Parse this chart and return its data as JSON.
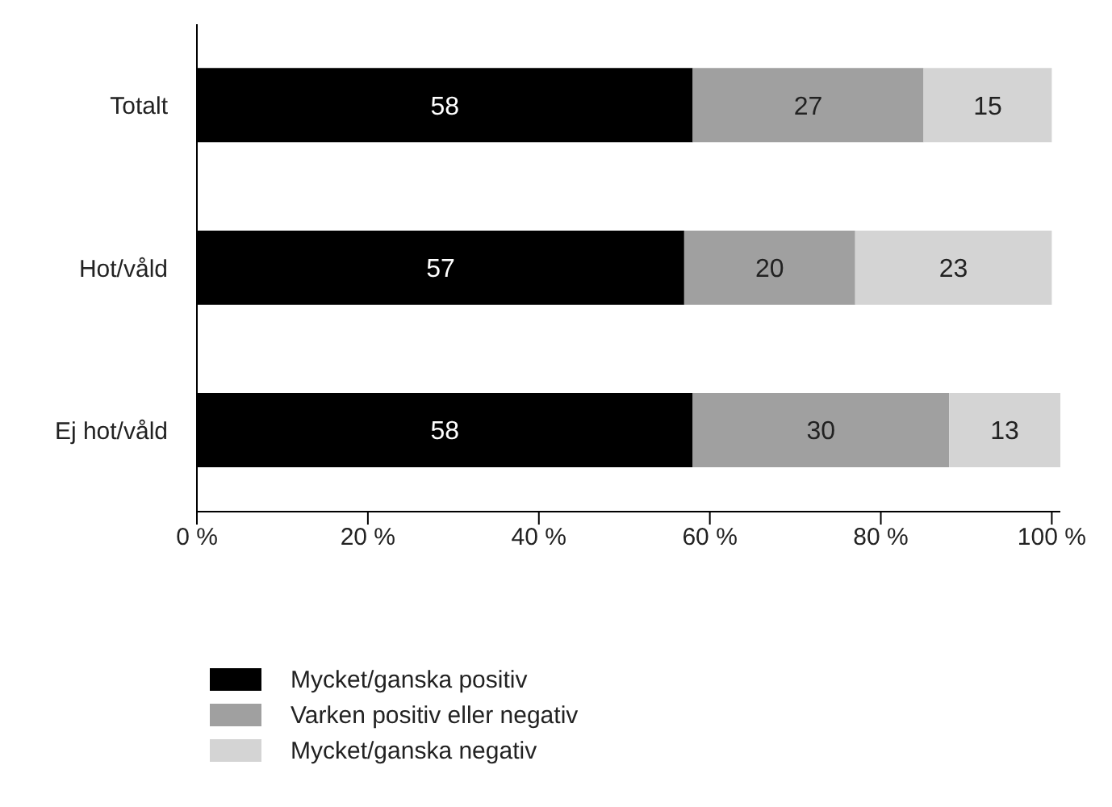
{
  "chart_data": {
    "type": "bar",
    "orientation": "horizontal",
    "stacked": true,
    "categories": [
      "Totalt",
      "Hot/våld",
      "Ej hot/våld"
    ],
    "series": [
      {
        "name": "Mycket/ganska positiv",
        "color": "#000000",
        "values": [
          58,
          57,
          58
        ]
      },
      {
        "name": "Varken positiv eller negativ",
        "color": "#a0a0a0",
        "values": [
          27,
          20,
          30
        ]
      },
      {
        "name": "Mycket/ganska negativ",
        "color": "#d4d4d4",
        "values": [
          15,
          23,
          13
        ]
      }
    ],
    "xlim": [
      0,
      101
    ],
    "xticks": [
      {
        "value": 0,
        "label": "0 %"
      },
      {
        "value": 20,
        "label": "20 %"
      },
      {
        "value": 40,
        "label": "40 %"
      },
      {
        "value": 60,
        "label": "60 %"
      },
      {
        "value": 80,
        "label": "80 %"
      },
      {
        "value": 100,
        "label": "100 %"
      }
    ],
    "data_labels": true,
    "grid": false,
    "legend": "bottom left"
  }
}
